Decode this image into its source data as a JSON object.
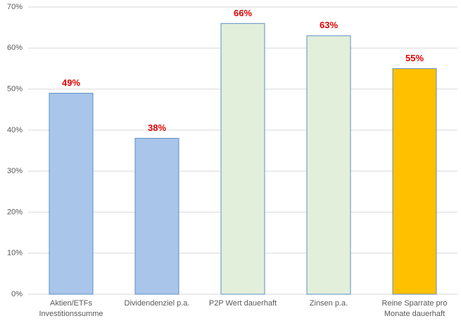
{
  "chart_data": {
    "type": "bar",
    "categories": [
      "Aktien/ETFs\nInvestitionssumme",
      "Dividendenziel p.a.",
      "P2P Wert dauerhaft",
      "Zinsen p.a.",
      "Reine Sparrate pro\nMonate dauerhaft"
    ],
    "values": [
      49,
      38,
      66,
      63,
      55
    ],
    "value_labels": [
      "49%",
      "38%",
      "66%",
      "63%",
      "55%"
    ],
    "colors": [
      "#a9c5e9",
      "#a9c5e9",
      "#e2efda",
      "#e2efda",
      "#ffc000"
    ],
    "ylim": [
      0,
      70
    ],
    "yticks": [
      {
        "value": 0,
        "label": "0%"
      },
      {
        "value": 10,
        "label": "10%"
      },
      {
        "value": 20,
        "label": "20%"
      },
      {
        "value": 30,
        "label": "30%"
      },
      {
        "value": 40,
        "label": "40%"
      },
      {
        "value": 50,
        "label": "50%"
      },
      {
        "value": 60,
        "label": "60%"
      },
      {
        "value": 70,
        "label": "70%"
      }
    ],
    "grid": true
  }
}
